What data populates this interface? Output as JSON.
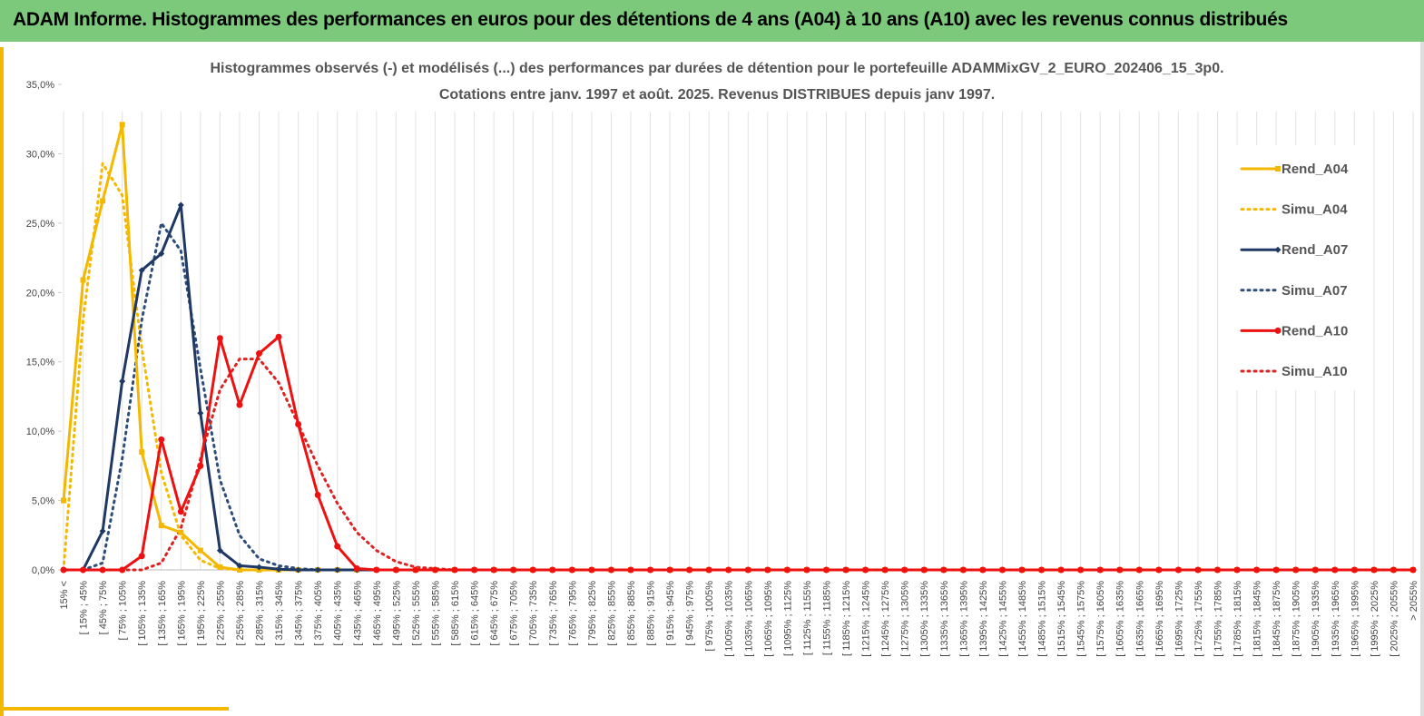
{
  "header": {
    "title": "ADAM Informe. Histogrammes des performances en euros pour des détentions de 4 ans (A04) à 10 ans (A10) avec les revenus connus distribués"
  },
  "chart_data": {
    "type": "line",
    "title": "Histogrammes observés (-) et modélisés (...) des performances par durées de détention pour le portefeuille ADAMMixGV_2_EURO_202406_15_3p0.",
    "subtitle": "Cotations entre janv. 1997 et août. 2025. Revenus DISTRIBUES depuis janv 1997.",
    "categories": [
      "15% <",
      "[ 15% ; 45%",
      "[ 45% ; 75%",
      "[ 75% ; 105%",
      "[ 105% ; 135%",
      "[ 135% ; 165%",
      "[ 165% ; 195%",
      "[ 195% ; 225%",
      "[ 225% ; 255%",
      "[ 255% ; 285%",
      "[ 285% ; 315%",
      "[ 315% ; 345%",
      "[ 345% ; 375%",
      "[ 375% ; 405%",
      "[ 405% ; 435%",
      "[ 435% ; 465%",
      "[ 465% ; 495%",
      "[ 495% ; 525%",
      "[ 525% ; 555%",
      "[ 555% ; 585%",
      "[ 585% ; 615%",
      "[ 615% ; 645%",
      "[ 645% ; 675%",
      "[ 675% ; 705%",
      "[ 705% ; 735%",
      "[ 735% ; 765%",
      "[ 765% ; 795%",
      "[ 795% ; 825%",
      "[ 825% ; 855%",
      "[ 855% ; 885%",
      "[ 885% ; 915%",
      "[ 915% ; 945%",
      "[ 945% ; 975%",
      "[ 975% ; 1005%",
      "[ 1005% ; 1035%",
      "[ 1035% ; 1065%",
      "[ 1065% ; 1095%",
      "[ 1095% ; 1125%",
      "[ 1125% ; 1155%",
      "[ 1155% ; 1185%",
      "[ 1185% ; 1215%",
      "[ 1215% ; 1245%",
      "[ 1245% ; 1275%",
      "[ 1275% ; 1305%",
      "[ 1305% ; 1335%",
      "[ 1335% ; 1365%",
      "[ 1365% ; 1395%",
      "[ 1395% ; 1425%",
      "[ 1425% ; 1455%",
      "[ 1455% ; 1485%",
      "[ 1485% ; 1515%",
      "[ 1515% ; 1545%",
      "[ 1545% ; 1575%",
      "[ 1575% ; 1605%",
      "[ 1605% ; 1635%",
      "[ 1635% ; 1665%",
      "[ 1665% ; 1695%",
      "[ 1695% ; 1725%",
      "[ 1725% ; 1755%",
      "[ 1755% ; 1785%",
      "[ 1785% ; 1815%",
      "[ 1815% ; 1845%",
      "[ 1845% ; 1875%",
      "[ 1875% ; 1905%",
      "[ 1905% ; 1935%",
      "[ 1935% ; 1965%",
      "[ 1965% ; 1995%",
      "[ 1995% ; 2025%",
      "[ 2025% ; 2055%",
      "> 2055%"
    ],
    "series": [
      {
        "name": "Rend_A04",
        "color": "#f5b800",
        "line_style": "solid",
        "marker": "square",
        "values": [
          5.0,
          20.9,
          26.6,
          32.1,
          8.5,
          3.2,
          2.7,
          1.4,
          0.2,
          0,
          0,
          0,
          0,
          0,
          0,
          0,
          0,
          0,
          0,
          0,
          0,
          0,
          0,
          0,
          0,
          0,
          0,
          0,
          0,
          0,
          0,
          0,
          0,
          0,
          0,
          0,
          0,
          0,
          0,
          0,
          0,
          0,
          0,
          0,
          0,
          0,
          0,
          0,
          0,
          0,
          0,
          0,
          0,
          0,
          0,
          0,
          0,
          0,
          0,
          0,
          0,
          0,
          0,
          0,
          0,
          0,
          0,
          0,
          0,
          0
        ]
      },
      {
        "name": "Simu_A04",
        "color": "#f5b800",
        "line_style": "dotted",
        "marker": "none",
        "values": [
          0,
          18,
          29.3,
          27,
          16,
          7,
          2.5,
          0.7,
          0.1,
          0,
          0,
          0,
          0,
          0,
          0,
          0,
          0,
          0,
          0,
          0,
          0,
          0,
          0,
          0,
          0,
          0,
          0,
          0,
          0,
          0,
          0,
          0,
          0,
          0,
          0,
          0,
          0,
          0,
          0,
          0,
          0,
          0,
          0,
          0,
          0,
          0,
          0,
          0,
          0,
          0,
          0,
          0,
          0,
          0,
          0,
          0,
          0,
          0,
          0,
          0,
          0,
          0,
          0,
          0,
          0,
          0,
          0,
          0,
          0,
          0
        ]
      },
      {
        "name": "Rend_A07",
        "color": "#1f3864",
        "line_style": "solid",
        "marker": "diamond",
        "values": [
          0,
          0,
          2.8,
          13.6,
          21.6,
          22.8,
          26.3,
          11.3,
          1.4,
          0.3,
          0.2,
          0.05,
          0,
          0,
          0,
          0,
          0,
          0,
          0,
          0,
          0,
          0,
          0,
          0,
          0,
          0,
          0,
          0,
          0,
          0,
          0,
          0,
          0,
          0,
          0,
          0,
          0,
          0,
          0,
          0,
          0,
          0,
          0,
          0,
          0,
          0,
          0,
          0,
          0,
          0,
          0,
          0,
          0,
          0,
          0,
          0,
          0,
          0,
          0,
          0,
          0,
          0,
          0,
          0,
          0,
          0,
          0,
          0,
          0,
          0
        ]
      },
      {
        "name": "Simu_A07",
        "color": "#2e4d7a",
        "line_style": "dotted",
        "marker": "none",
        "values": [
          0,
          0,
          0.5,
          8,
          18,
          25,
          23,
          14.5,
          6.5,
          2.5,
          0.8,
          0.3,
          0.1,
          0,
          0,
          0,
          0,
          0,
          0,
          0,
          0,
          0,
          0,
          0,
          0,
          0,
          0,
          0,
          0,
          0,
          0,
          0,
          0,
          0,
          0,
          0,
          0,
          0,
          0,
          0,
          0,
          0,
          0,
          0,
          0,
          0,
          0,
          0,
          0,
          0,
          0,
          0,
          0,
          0,
          0,
          0,
          0,
          0,
          0,
          0,
          0,
          0,
          0,
          0,
          0,
          0,
          0,
          0,
          0,
          0
        ]
      },
      {
        "name": "Rend_A10",
        "color": "#ee1111",
        "line_style": "solid",
        "marker": "circle",
        "values": [
          0,
          0,
          0,
          0,
          1.0,
          9.4,
          4.2,
          7.5,
          16.7,
          11.9,
          15.6,
          16.8,
          10.5,
          5.4,
          1.7,
          0.1,
          0,
          0,
          0,
          0,
          0,
          0,
          0,
          0,
          0,
          0,
          0,
          0,
          0,
          0,
          0,
          0,
          0,
          0,
          0,
          0,
          0,
          0,
          0,
          0,
          0,
          0,
          0,
          0,
          0,
          0,
          0,
          0,
          0,
          0,
          0,
          0,
          0,
          0,
          0,
          0,
          0,
          0,
          0,
          0,
          0,
          0,
          0,
          0,
          0,
          0,
          0,
          0,
          0,
          0
        ]
      },
      {
        "name": "Simu_A10",
        "color": "#dd2222",
        "line_style": "dotted",
        "marker": "none",
        "values": [
          0,
          0,
          0,
          0,
          0,
          0.5,
          3,
          8,
          13,
          15.2,
          15.2,
          13.5,
          10.5,
          7.5,
          4.8,
          2.7,
          1.4,
          0.6,
          0.2,
          0.1,
          0,
          0,
          0,
          0,
          0,
          0,
          0,
          0,
          0,
          0,
          0,
          0,
          0,
          0,
          0,
          0,
          0,
          0,
          0,
          0,
          0,
          0,
          0,
          0,
          0,
          0,
          0,
          0,
          0,
          0,
          0,
          0,
          0,
          0,
          0,
          0,
          0,
          0,
          0,
          0,
          0,
          0,
          0,
          0,
          0,
          0,
          0,
          0,
          0,
          0
        ]
      }
    ],
    "ylim": [
      0,
      35
    ],
    "yticks": [
      {
        "value": 0,
        "label": "0,0%"
      },
      {
        "value": 5,
        "label": "5,0%"
      },
      {
        "value": 10,
        "label": "10,0%"
      },
      {
        "value": 15,
        "label": "15,0%"
      },
      {
        "value": 20,
        "label": "20,0%"
      },
      {
        "value": 25,
        "label": "25,0%"
      },
      {
        "value": 30,
        "label": "30,0%"
      },
      {
        "value": 35,
        "label": "35,0%"
      }
    ],
    "grid": "vertical",
    "legend": "right"
  }
}
